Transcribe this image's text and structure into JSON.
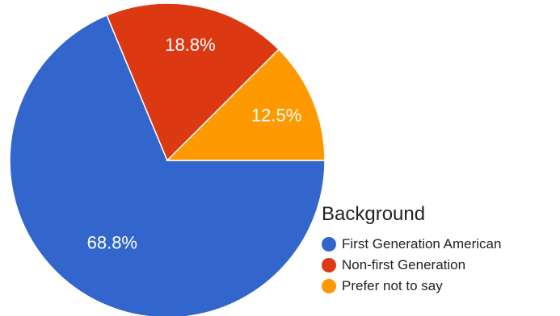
{
  "chart_data": {
    "type": "pie",
    "legend": {
      "title": "Background",
      "position": "bottom-right"
    },
    "slices": [
      {
        "name": "First Generation American",
        "value": 68.8,
        "label": "68.8%",
        "color": "#3366cc"
      },
      {
        "name": "Non-first Generation",
        "value": 18.8,
        "label": "18.8%",
        "color": "#dc3912"
      },
      {
        "name": "Prefer not to say",
        "value": 12.5,
        "label": "12.5%",
        "color": "#ff9900"
      }
    ]
  }
}
